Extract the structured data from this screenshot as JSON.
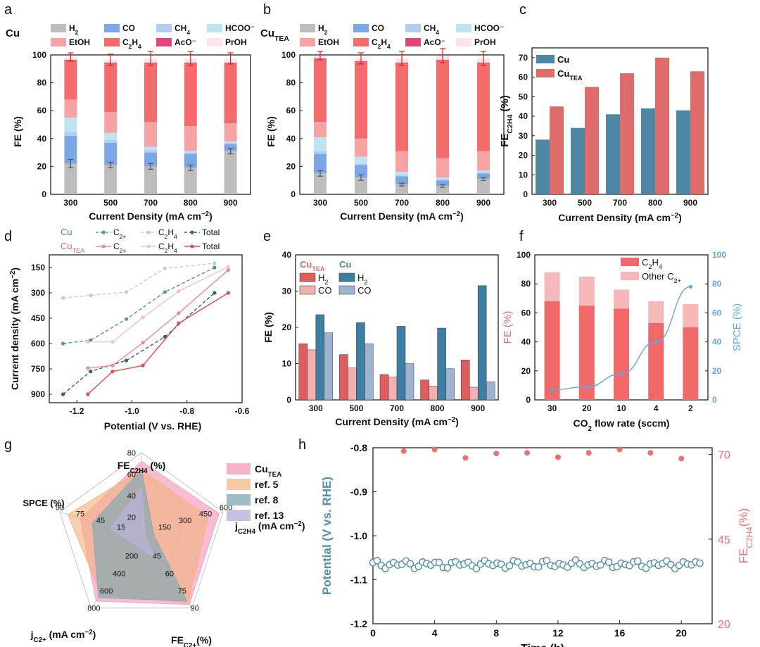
{
  "colors": {
    "H2": "#bdbdbd",
    "CO": "#7ba7e6",
    "CH4": "#b3cdf0",
    "HCOO": "#bfe3f2",
    "EtOH": "#f7a3a3",
    "C2H4": "#f36b6b",
    "AcO": "#e14878",
    "PrOH": "#fde4ea",
    "cu": "#4e86a6",
    "cutea": "#e06b6b",
    "cu_h2": "#3f7ea3",
    "cu_co": "#9eb3d2",
    "tea_h2": "#e05d5d",
    "tea_co": "#f4b0b0",
    "c2h4bar": "#f06868",
    "otherc2": "#f6b8b8",
    "spce": "#5fa7e6",
    "ref5": "#f2b27a",
    "ref8": "#86a9b7",
    "ref13": "#b8b2d8",
    "h_pot": "#4f8fb0",
    "h_fe": "#f07070",
    "errbar": "#e02020"
  },
  "panels": {
    "a": "a",
    "b": "b",
    "c": "c",
    "d": "d",
    "e": "e",
    "f": "f",
    "g": "g",
    "h": "h"
  },
  "legend_ab": {
    "H2": {
      "main": "H",
      "sub": "2"
    },
    "CO": "CO",
    "CH4": {
      "main": "CH",
      "sub": "4"
    },
    "HCOO": "HCOO⁻",
    "EtOH": "EtOH",
    "C2H4": {
      "a": "C",
      "s1": "2",
      "b": "H",
      "s2": "4"
    },
    "AcO": "AcO⁻",
    "PrOH": "PrOH"
  },
  "chart_data": [
    {
      "id": "a",
      "type": "bar",
      "stacked": true,
      "catalyst_label": "Cu",
      "categories": [
        "300",
        "500",
        "700",
        "800",
        "900"
      ],
      "xlabel_main": "Current Density ",
      "xlabel_unit": "(mA cm",
      "xlabel_sup": "−2",
      "xlabel_close": ")",
      "ylabel": "FE (%)",
      "ylim": [
        0,
        100
      ],
      "yticks": [
        "0",
        "20",
        "40",
        "60",
        "80",
        "100"
      ],
      "series": [
        {
          "name": "H2",
          "values": [
            22,
            21,
            20,
            19,
            31
          ]
        },
        {
          "name": "CO",
          "values": [
            20,
            16,
            10,
            10,
            5
          ]
        },
        {
          "name": "CH4",
          "values": [
            3,
            2,
            2,
            1,
            1
          ]
        },
        {
          "name": "HCOO",
          "values": [
            10,
            5,
            2,
            1,
            1
          ]
        },
        {
          "name": "EtOH",
          "values": [
            13,
            15,
            18,
            18,
            13
          ]
        },
        {
          "name": "C2H4",
          "values": [
            28,
            35,
            42,
            45,
            43
          ]
        },
        {
          "name": "AcO",
          "values": [
            0.5,
            0.5,
            0.5,
            0.5,
            0.5
          ]
        },
        {
          "name": "PrOH",
          "values": [
            2,
            2,
            3,
            3,
            3
          ]
        }
      ],
      "error_total": [
        3,
        4,
        5,
        5,
        4
      ],
      "error_h2": [
        3,
        2,
        2,
        2,
        2
      ]
    },
    {
      "id": "b",
      "type": "bar",
      "stacked": true,
      "catalyst_label": {
        "main": "Cu",
        "sub": "TEA"
      },
      "categories": [
        "300",
        "500",
        "700",
        "800",
        "900"
      ],
      "xlabel_main": "Current Density ",
      "xlabel_unit": "(mA cm",
      "xlabel_sup": "−2",
      "xlabel_close": ")",
      "ylabel": "FE (%)",
      "ylim": [
        0,
        100
      ],
      "yticks": [
        "0",
        "20",
        "40",
        "60",
        "80",
        "100"
      ],
      "series": [
        {
          "name": "H2",
          "values": [
            15,
            12,
            7,
            6,
            11
          ]
        },
        {
          "name": "CO",
          "values": [
            14,
            9,
            6,
            4,
            4
          ]
        },
        {
          "name": "CH4",
          "values": [
            2,
            1,
            1,
            1,
            1
          ]
        },
        {
          "name": "HCOO",
          "values": [
            10,
            5,
            2,
            1,
            1
          ]
        },
        {
          "name": "EtOH",
          "values": [
            11,
            13,
            15,
            14,
            14
          ]
        },
        {
          "name": "C2H4",
          "values": [
            45,
            55,
            63,
            70,
            63
          ]
        },
        {
          "name": "AcO",
          "values": [
            0.5,
            0.5,
            0.5,
            0.5,
            0.5
          ]
        },
        {
          "name": "PrOH",
          "values": [
            2,
            2,
            3,
            3,
            3
          ]
        }
      ],
      "error_total": [
        3,
        4,
        5,
        5,
        5
      ],
      "error_h2": [
        2,
        2,
        1,
        1,
        1
      ]
    },
    {
      "id": "c",
      "type": "bar",
      "categories": [
        "300",
        "500",
        "700",
        "800",
        "900"
      ],
      "xlabel_main": "Current Density ",
      "xlabel_unit": "(mA cm",
      "xlabel_sup": "−2",
      "xlabel_close": ")",
      "ylabel": {
        "main": "FE",
        "sub": "C2H4",
        "unit": " (%)"
      },
      "ylim": [
        0,
        75
      ],
      "yticks": [
        "0",
        "10",
        "20",
        "30",
        "40",
        "50",
        "60",
        "70"
      ],
      "series": [
        {
          "name": "Cu",
          "label": "Cu",
          "values": [
            28,
            34,
            41,
            44,
            43
          ]
        },
        {
          "name": "CuTEA",
          "label": {
            "main": "Cu",
            "sub": "TEA"
          },
          "values": [
            45,
            55,
            62,
            70,
            63
          ]
        }
      ]
    },
    {
      "id": "d",
      "type": "line",
      "xlabel": "Potential (V vs. RHE)",
      "ylabel_main": "Current density (mA cm",
      "ylabel_sup": "−2",
      "ylabel_close": ")",
      "xlim": [
        -1.3,
        -0.6
      ],
      "ylim": [
        75,
        950
      ],
      "y_inverted": true,
      "xticks": [
        "-1.2",
        "-1.0",
        "-0.8",
        "-0.6"
      ],
      "yticks": [
        "150",
        "300",
        "450",
        "600",
        "750",
        "900"
      ],
      "legend": {
        "cu": "Cu",
        "cutea": {
          "main": "Cu",
          "sub": "TEA"
        },
        "c2": {
          "main": "C",
          "sub": "2+"
        },
        "c2h4": {
          "a": "C",
          "s1": "2",
          "b": "H",
          "s2": "4"
        },
        "total": "Total"
      },
      "series": [
        {
          "name": "Cu C2H4",
          "x": [
            -1.25,
            -1.15,
            -1.02,
            -0.88,
            -0.7
          ],
          "y": [
            330,
            315,
            295,
            155,
            125
          ]
        },
        {
          "name": "Cu C2+",
          "x": [
            -1.25,
            -1.15,
            -1.02,
            -0.88,
            -0.7
          ],
          "y": [
            600,
            580,
            455,
            295,
            150
          ]
        },
        {
          "name": "Cu Total",
          "x": [
            -1.25,
            -1.15,
            -1.02,
            -0.88,
            -0.7
          ],
          "y": [
            900,
            765,
            700,
            560,
            300
          ]
        },
        {
          "name": "CuTEA C2H4",
          "x": [
            -1.16,
            -1.07,
            -0.96,
            -0.83,
            -0.65
          ],
          "y": [
            590,
            590,
            445,
            290,
            145
          ]
        },
        {
          "name": "CuTEA C2+",
          "x": [
            -1.16,
            -1.07,
            -0.96,
            -0.83,
            -0.65
          ],
          "y": [
            745,
            730,
            595,
            420,
            165
          ]
        },
        {
          "name": "CuTEA Total",
          "x": [
            -1.16,
            -1.07,
            -0.96,
            -0.83,
            -0.65
          ],
          "y": [
            900,
            765,
            730,
            480,
            300
          ]
        }
      ]
    },
    {
      "id": "e",
      "type": "bar",
      "categories": [
        "300",
        "500",
        "700",
        "800",
        "900"
      ],
      "xlabel_main": "Current Density ",
      "xlabel_unit": "(mA cm",
      "xlabel_sup": "−2",
      "xlabel_close": ")",
      "ylabel": "FE (%)",
      "ylim": [
        0,
        40
      ],
      "yticks": [
        "0",
        "10",
        "20",
        "30",
        "40"
      ],
      "legend_cutea": {
        "main": "Cu",
        "sub": "TEA"
      },
      "legend_cu": "Cu",
      "series": [
        {
          "name": "CuTEA H2",
          "label": {
            "main": "H",
            "sub": "2"
          },
          "values": [
            15.5,
            12.5,
            7,
            5.5,
            11
          ]
        },
        {
          "name": "CuTEA CO",
          "label": "CO",
          "values": [
            13.8,
            8.8,
            6.3,
            3.8,
            3.5
          ]
        },
        {
          "name": "Cu H2",
          "label": {
            "main": "H",
            "sub": "2"
          },
          "values": [
            23.5,
            21.3,
            20.3,
            19.8,
            31.5
          ]
        },
        {
          "name": "Cu CO",
          "label": "CO",
          "values": [
            18.5,
            15.5,
            10,
            8.6,
            5
          ]
        }
      ]
    },
    {
      "id": "f",
      "type": "bar",
      "categories": [
        "30",
        "20",
        "10",
        "4",
        "2"
      ],
      "xlabel_main": "CO",
      "xlabel_sub": "2",
      "xlabel_rest": " flow rate (sccm)",
      "ylabel": "FE (%)",
      "y2label": "SPCE (%)",
      "ylim": [
        0,
        100
      ],
      "y2lim": [
        0,
        100
      ],
      "yticks": [
        "0",
        "20",
        "40",
        "60",
        "80",
        "100"
      ],
      "y2ticks": [
        "0",
        "20",
        "40",
        "60",
        "80",
        "100"
      ],
      "legend_c2h4": {
        "a": "C",
        "s1": "2",
        "b": "H",
        "s2": "4"
      },
      "legend_other": {
        "main": "Other C",
        "sub": "2+"
      },
      "series": [
        {
          "name": "C2H4",
          "values": [
            68,
            65,
            63,
            53,
            50
          ]
        },
        {
          "name": "Other C2+",
          "values": [
            20,
            20,
            13,
            15,
            16
          ]
        },
        {
          "name": "SPCE",
          "values": [
            7,
            9,
            18,
            40,
            78
          ]
        }
      ]
    },
    {
      "id": "g",
      "type": "radar",
      "axes": [
        {
          "label": {
            "main": "FE",
            "sub": "C2H4",
            "unit": " (%)"
          },
          "ticks": [
            "20",
            "40",
            "60",
            "80"
          ]
        },
        {
          "label": {
            "main": "j",
            "sub": "C2H4",
            "unit": " (mA cm",
            "sup": "−2",
            "close": ")"
          },
          "ticks": [
            "150",
            "300",
            "450",
            "600"
          ]
        },
        {
          "label": {
            "main": "FE",
            "sub": "C2+",
            "unit": "(%)"
          },
          "ticks": [
            "45",
            "60",
            "75",
            "90"
          ]
        },
        {
          "label": {
            "main": "j",
            "sub": "C2+",
            "unit": " (mA cm",
            "sup": "−2",
            "close": ")"
          },
          "ticks": [
            "200",
            "400",
            "600",
            "800"
          ]
        },
        {
          "label": {
            "main": "SPCE (%)"
          },
          "ticks": [
            "15",
            "45",
            "75",
            "90"
          ]
        }
      ],
      "series": [
        {
          "name": "CuTEA",
          "label": {
            "main": "Cu",
            "sub": "TEA"
          },
          "values": [
            0.9,
            0.95,
            0.95,
            0.9,
            0.75
          ]
        },
        {
          "name": "ref. 5",
          "label": "ref. 5",
          "values": [
            0.8,
            0.82,
            0.92,
            0.8,
            0.9
          ]
        },
        {
          "name": "ref. 8",
          "label": "ref. 8",
          "values": [
            0.8,
            0.15,
            0.9,
            0.85,
            0.6
          ]
        },
        {
          "name": "ref. 13",
          "label": "ref. 13",
          "values": [
            0.6,
            0.05,
            0.3,
            0.1,
            0.38
          ]
        }
      ]
    },
    {
      "id": "h",
      "type": "scatter",
      "xlabel": "Time (h)",
      "ylabel": "Potential (V vs. RHE)",
      "y2label": {
        "main": "FE",
        "sub": "C2H4",
        "unit": "(%)"
      },
      "xlim": [
        0,
        22
      ],
      "ylim": [
        -1.2,
        -0.8
      ],
      "y2lim": [
        20,
        72
      ],
      "xticks": [
        "0",
        "4",
        "8",
        "12",
        "16",
        "20"
      ],
      "yticks": [
        "-0.8",
        "-0.9",
        "-1.0",
        "-1.1",
        "-1.2"
      ],
      "y2ticks": [
        "20",
        "45",
        "70"
      ],
      "series": [
        {
          "name": "Potential",
          "mean": -1.065,
          "x_start": 0,
          "x_end": 21.2,
          "count": 80
        },
        {
          "name": "FE C2H4",
          "x": [
            2,
            4,
            6,
            8,
            10,
            12,
            14,
            16,
            18,
            20
          ],
          "y": [
            71,
            71.5,
            69,
            70.3,
            70.5,
            69.2,
            70.5,
            71.5,
            70.5,
            68.8
          ]
        }
      ]
    }
  ]
}
